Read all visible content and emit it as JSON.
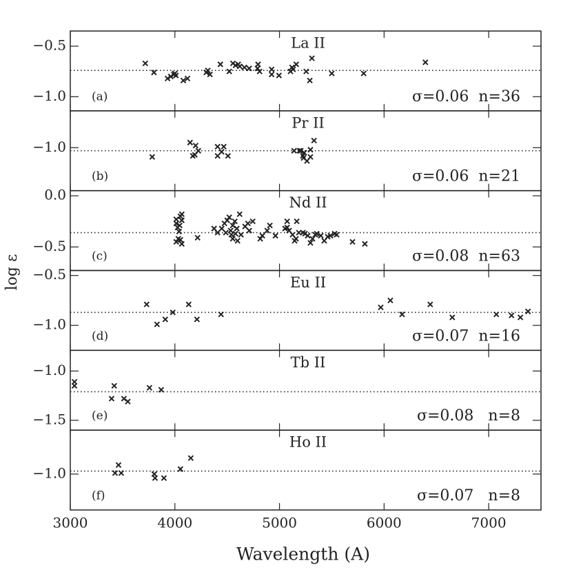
{
  "chart_data": {
    "type": "scatter",
    "xlabel": "Wavelength (A)",
    "ylabel": "log ε",
    "xlim": [
      3000,
      7500
    ],
    "xticks": [
      3000,
      4000,
      5000,
      6000,
      7000
    ],
    "color": "#222222",
    "panels": [
      {
        "title": "La II",
        "label": "(a)",
        "annotation": "σ=0.06  n=36",
        "ylim": [
          -1.14,
          -0.35
        ],
        "yticks": [
          {
            "value": -0.5,
            "label": "−0.5"
          },
          {
            "value": -1.0,
            "label": "−1.0"
          }
        ],
        "mean": -0.74,
        "x": [
          3717,
          3800,
          3930,
          3960,
          3990,
          4010,
          4080,
          4120,
          4315,
          4335,
          4435,
          4520,
          4555,
          4580,
          4605,
          4665,
          4710,
          4795,
          4810,
          4925,
          4925,
          4995,
          5105,
          5130,
          5160,
          5255,
          5290,
          5310,
          5500,
          5805,
          6395,
          4000,
          4300,
          4620,
          5120,
          4790
        ],
        "values": [
          -0.67,
          -0.76,
          -0.82,
          -0.8,
          -0.78,
          -0.79,
          -0.84,
          -0.82,
          -0.74,
          -0.78,
          -0.68,
          -0.75,
          -0.67,
          -0.69,
          -0.68,
          -0.71,
          -0.72,
          -0.68,
          -0.75,
          -0.78,
          -0.73,
          -0.79,
          -0.75,
          -0.73,
          -0.68,
          -0.75,
          -0.84,
          -0.62,
          -0.77,
          -0.77,
          -0.66,
          -0.77,
          -0.76,
          -0.7,
          -0.71,
          -0.72
        ]
      },
      {
        "title": "Pr II",
        "label": "(b)",
        "annotation": "σ=0.06  n=21",
        "ylim": [
          -1.42,
          -0.64
        ],
        "yticks": [
          {
            "value": -1.0,
            "label": "−1.0"
          }
        ],
        "mean": -1.03,
        "x": [
          3783,
          4145,
          4171,
          4198,
          4224,
          4191,
          4408,
          4408,
          4467,
          4447,
          4507,
          5139,
          5191,
          5204,
          5224,
          5230,
          5263,
          5296,
          5296,
          5330,
          5237
        ],
        "values": [
          -1.09,
          -0.95,
          -1.08,
          -0.98,
          -1.03,
          -1.07,
          -0.99,
          -1.08,
          -0.99,
          -1.04,
          -1.08,
          -1.03,
          -1.03,
          -1.03,
          -1.08,
          -1.1,
          -1.13,
          -1.09,
          -1.02,
          -0.93,
          -1.05
        ]
      },
      {
        "title": "Nd II",
        "label": "(c)",
        "annotation": "σ=0.08  n=63",
        "ylim": [
          -0.73,
          0.05
        ],
        "yticks": [
          {
            "value": 0,
            "label": "0.0"
          },
          {
            "value": -0.5,
            "label": "−0.5"
          }
        ],
        "mean": -0.36,
        "x": [
          4013,
          4013,
          4026,
          4053,
          4066,
          4046,
          4033,
          4013,
          4053,
          4066,
          4040,
          4066,
          4217,
          4375,
          4408,
          4448,
          4474,
          4487,
          4500,
          4520,
          4533,
          4553,
          4540,
          4553,
          4573,
          4592,
          4579,
          4599,
          4619,
          4632,
          4671,
          4698,
          4711,
          4744,
          4816,
          4836,
          4882,
          4908,
          4961,
          5053,
          5073,
          5092,
          5125,
          5145,
          5158,
          5165,
          5185,
          5224,
          5244,
          5270,
          5296,
          5316,
          5342,
          5356,
          5395,
          5428,
          5461,
          5487,
          5527,
          5546,
          5698,
          5816,
          5073
        ],
        "values": [
          -0.23,
          -0.27,
          -0.31,
          -0.2,
          -0.24,
          -0.29,
          -0.42,
          -0.45,
          -0.43,
          -0.47,
          -0.35,
          -0.18,
          -0.41,
          -0.32,
          -0.36,
          -0.32,
          -0.27,
          -0.36,
          -0.24,
          -0.21,
          -0.34,
          -0.29,
          -0.38,
          -0.42,
          -0.25,
          -0.32,
          -0.37,
          -0.44,
          -0.18,
          -0.38,
          -0.3,
          -0.27,
          -0.34,
          -0.25,
          -0.42,
          -0.39,
          -0.34,
          -0.29,
          -0.39,
          -0.32,
          -0.25,
          -0.34,
          -0.38,
          -0.44,
          -0.42,
          -0.25,
          -0.36,
          -0.36,
          -0.37,
          -0.39,
          -0.46,
          -0.42,
          -0.38,
          -0.37,
          -0.39,
          -0.44,
          -0.4,
          -0.39,
          -0.37,
          -0.38,
          -0.45,
          -0.47,
          -0.31
        ]
      },
      {
        "title": "Eu II",
        "label": "(d)",
        "annotation": "σ=0.07  n=16",
        "ylim": [
          -1.25,
          -0.45
        ],
        "yticks": [
          {
            "value": -0.5,
            "label": "−0.5"
          },
          {
            "value": -1.0,
            "label": "−1.0"
          }
        ],
        "mean": -0.87,
        "x": [
          3730,
          3829,
          3908,
          3980,
          4132,
          4211,
          4441,
          5968,
          6060,
          6172,
          6441,
          6652,
          7073,
          7218,
          7303,
          7376
        ],
        "values": [
          -0.79,
          -0.99,
          -0.94,
          -0.87,
          -0.79,
          -0.94,
          -0.89,
          -0.82,
          -0.75,
          -0.89,
          -0.79,
          -0.92,
          -0.89,
          -0.9,
          -0.92,
          -0.86
        ]
      },
      {
        "title": "Tb II",
        "label": "(e)",
        "annotation": "σ=0.08   n=8",
        "ylim": [
          -1.6,
          -0.79
        ],
        "yticks": [
          {
            "value": -1.0,
            "label": "−1.0"
          },
          {
            "value": -1.5,
            "label": "−1.5"
          }
        ],
        "mean": -1.21,
        "x": [
          3040,
          3040,
          3395,
          3420,
          3513,
          3550,
          3757,
          3869
        ],
        "values": [
          -1.11,
          -1.15,
          -1.28,
          -1.15,
          -1.28,
          -1.31,
          -1.17,
          -1.19
        ]
      },
      {
        "title": "Ho II",
        "label": "(f)",
        "annotation": "σ=0.07   n=8",
        "ylim": [
          -1.36,
          -0.56
        ],
        "yticks": [
          {
            "value": -1.0,
            "label": "−1.0"
          }
        ],
        "mean": -0.97,
        "x": [
          3428,
          3461,
          3487,
          3803,
          3810,
          3895,
          4053,
          4152
        ],
        "values": [
          -0.99,
          -0.91,
          -0.99,
          -1.0,
          -1.04,
          -1.04,
          -0.95,
          -0.84
        ]
      }
    ]
  }
}
